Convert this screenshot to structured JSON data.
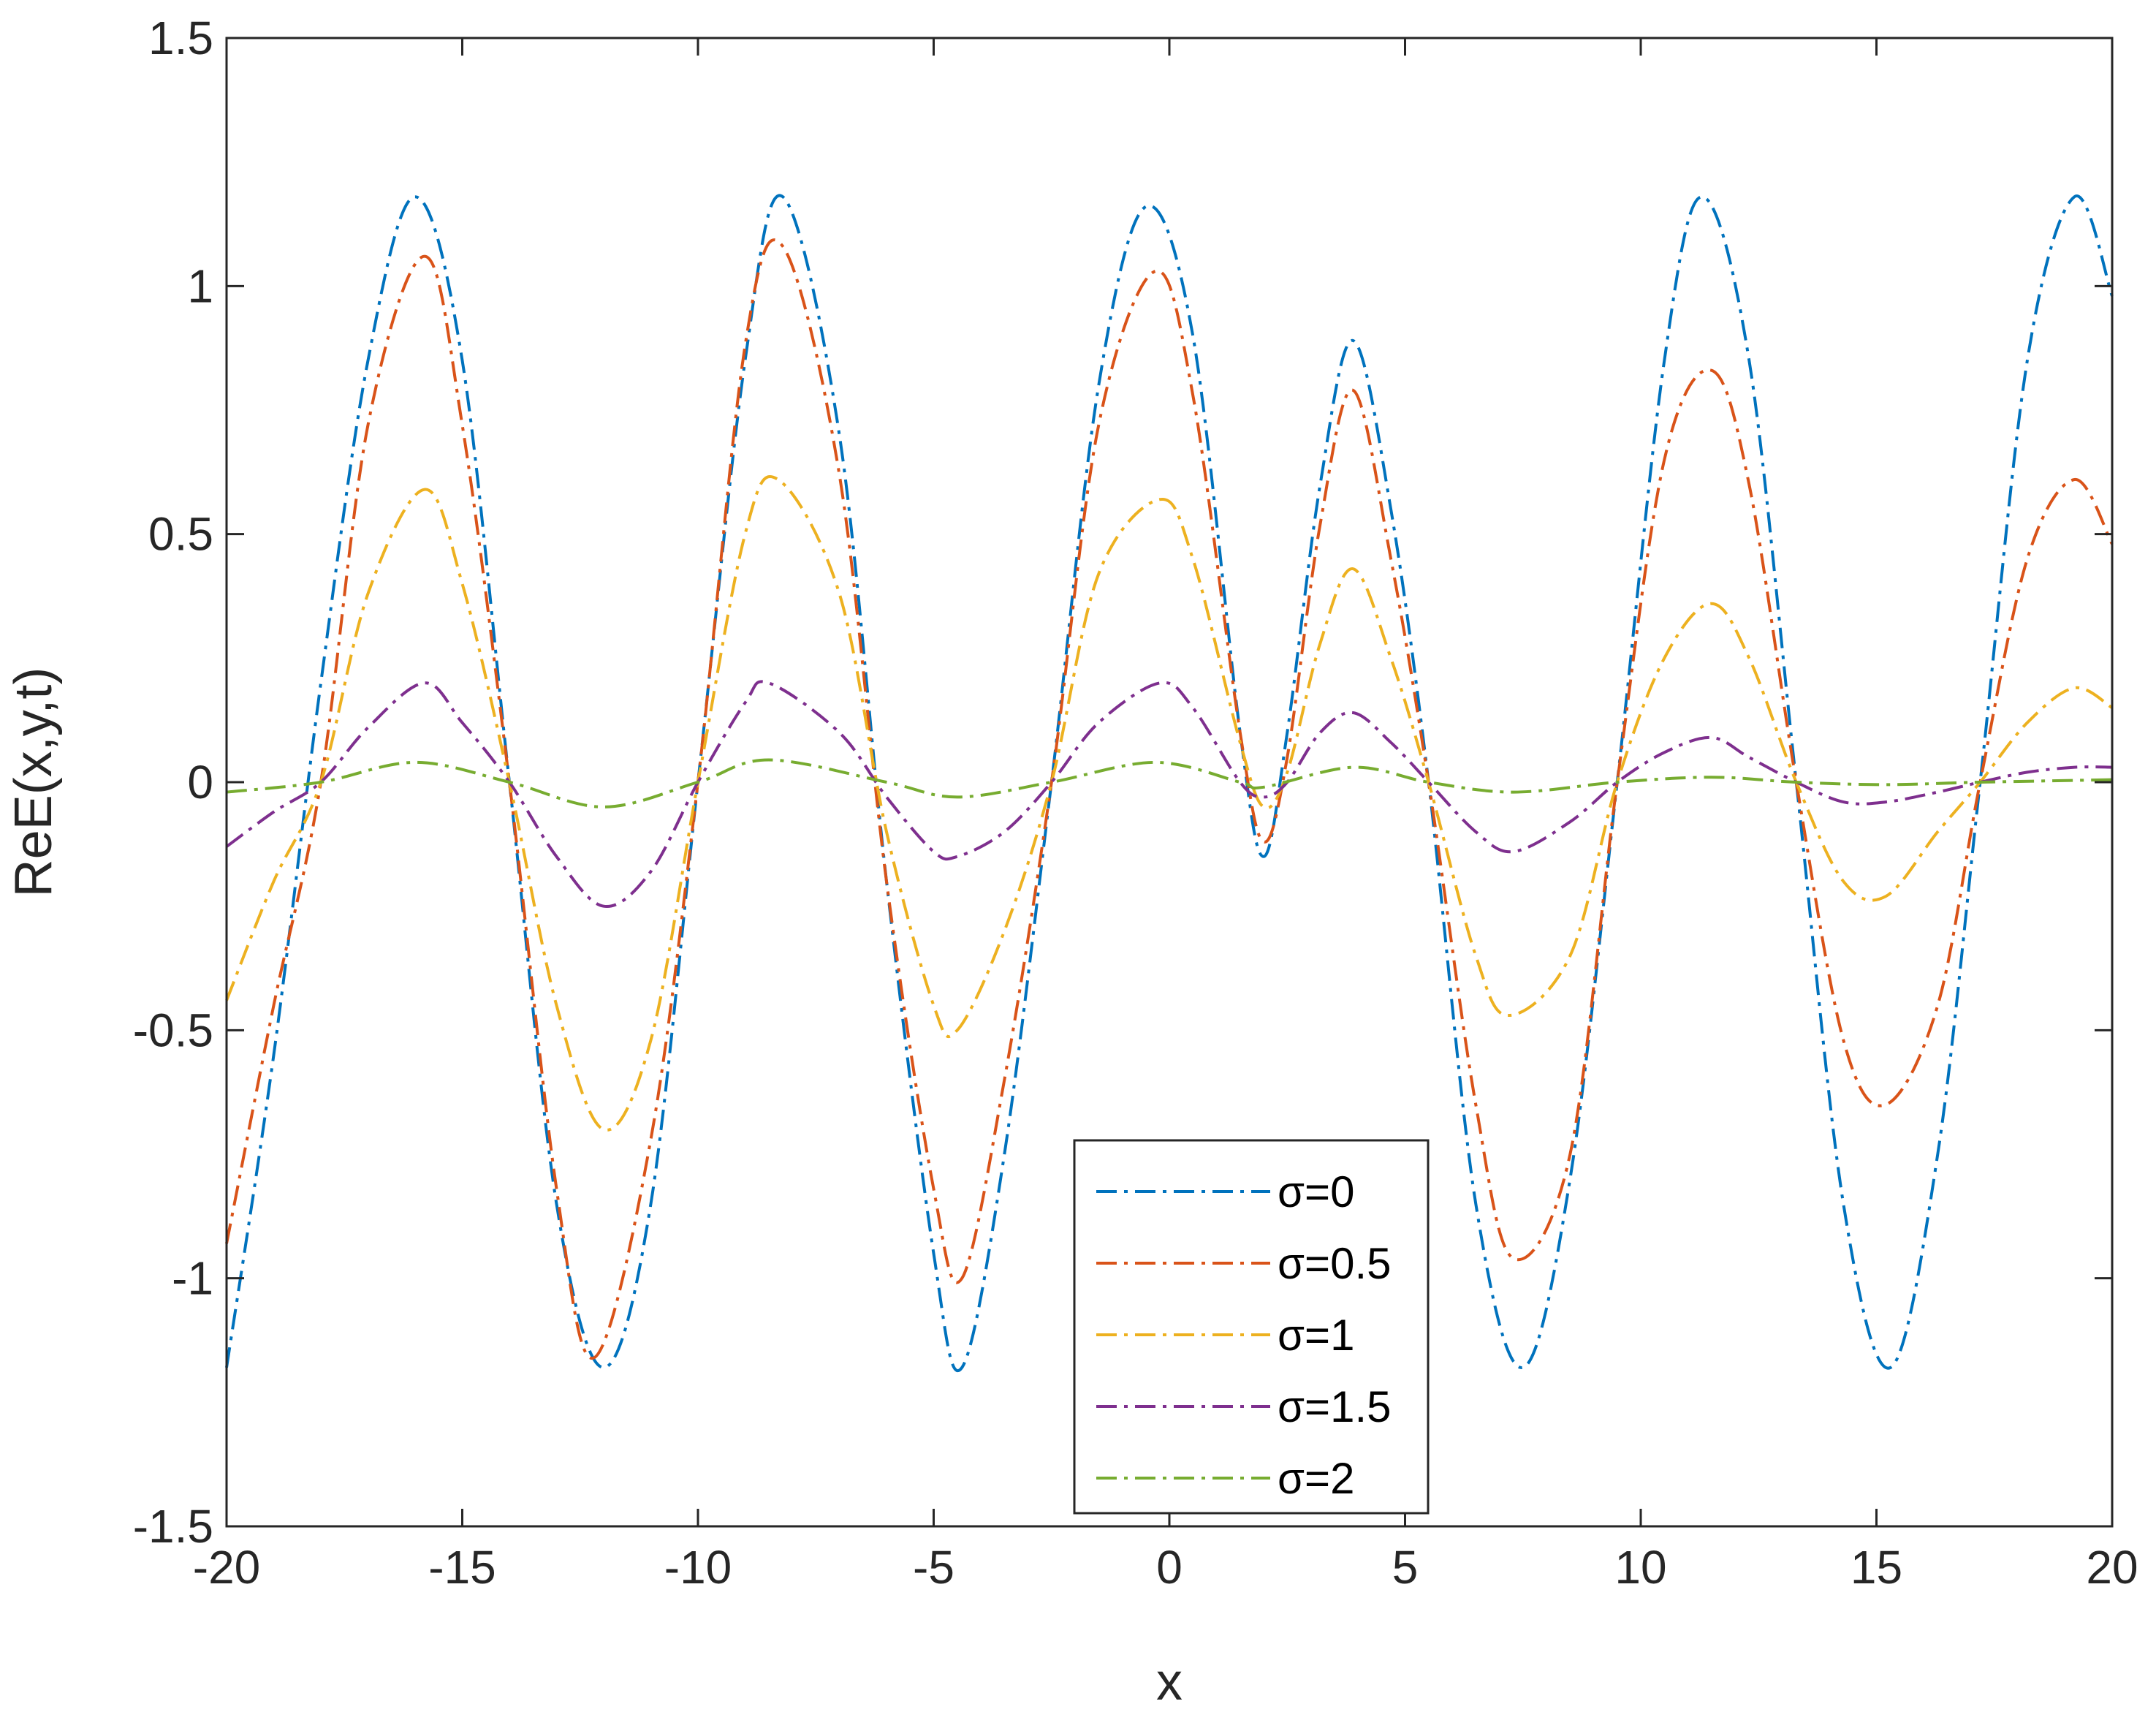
{
  "chart_data": {
    "type": "line",
    "title": "",
    "xlabel": "x",
    "ylabel": "ReE(x,y,t)",
    "xlim": [
      -20,
      20
    ],
    "ylim": [
      -1.5,
      1.5
    ],
    "xticks": [
      "-20",
      "-15",
      "-10",
      "-5",
      "0",
      "5",
      "10",
      "15",
      "20"
    ],
    "yticks": [
      "1.5",
      "1",
      "0.5",
      "0",
      "-0.5",
      "-1",
      "-1.5"
    ],
    "grid": false,
    "legend_position": "bottom-center",
    "line_style": "dash-dot",
    "series": [
      {
        "name": "σ=0",
        "color": "#0072BD",
        "points": [
          [
            -20,
            -1.18
          ],
          [
            -19,
            -0.55
          ],
          [
            -18,
            0.2
          ],
          [
            -17,
            0.85
          ],
          [
            -16,
            1.18
          ],
          [
            -15,
            0.85
          ],
          [
            -14,
            0.0
          ],
          [
            -13,
            -0.85
          ],
          [
            -12,
            -1.18
          ],
          [
            -11,
            -0.85
          ],
          [
            -10,
            0.0
          ],
          [
            -9,
            0.85
          ],
          [
            -8.2,
            1.18
          ],
          [
            -7,
            0.7
          ],
          [
            -6,
            -0.2
          ],
          [
            -5,
            -0.95
          ],
          [
            -4.4,
            -1.18
          ],
          [
            -3.5,
            -0.75
          ],
          [
            -2.5,
            0.0
          ],
          [
            -1.5,
            0.8
          ],
          [
            -0.5,
            1.16
          ],
          [
            0.5,
            0.9
          ],
          [
            1.5,
            0.1
          ],
          [
            2.0,
            -0.15
          ],
          [
            2.5,
            0.1
          ],
          [
            3.2,
            0.6
          ],
          [
            3.9,
            0.89
          ],
          [
            4.7,
            0.55
          ],
          [
            5.5,
            0.0
          ],
          [
            6.5,
            -0.85
          ],
          [
            7.5,
            -1.18
          ],
          [
            8.5,
            -0.8
          ],
          [
            9.5,
            0.0
          ],
          [
            10.5,
            0.85
          ],
          [
            11.3,
            1.18
          ],
          [
            12.3,
            0.85
          ],
          [
            13.3,
            0.0
          ],
          [
            14.3,
            -0.85
          ],
          [
            15.3,
            -1.18
          ],
          [
            16.3,
            -0.75
          ],
          [
            17.2,
            0.0
          ],
          [
            18.2,
            0.85
          ],
          [
            19.2,
            1.18
          ],
          [
            20,
            0.98
          ]
        ]
      },
      {
        "name": "σ=0.5",
        "color": "#D95319",
        "points": [
          [
            -20,
            -0.93
          ],
          [
            -19,
            -0.45
          ],
          [
            -18,
            0.0
          ],
          [
            -17,
            0.72
          ],
          [
            -15.8,
            1.06
          ],
          [
            -15,
            0.72
          ],
          [
            -14,
            0.0
          ],
          [
            -13,
            -0.82
          ],
          [
            -12.2,
            -1.16
          ],
          [
            -11,
            -0.72
          ],
          [
            -10,
            0.0
          ],
          [
            -9,
            0.88
          ],
          [
            -8.2,
            1.08
          ],
          [
            -7,
            0.62
          ],
          [
            -6,
            -0.2
          ],
          [
            -5,
            -0.82
          ],
          [
            -4.4,
            -1.0
          ],
          [
            -3.5,
            -0.6
          ],
          [
            -2.5,
            0.0
          ],
          [
            -1.5,
            0.72
          ],
          [
            -0.3,
            1.03
          ],
          [
            0.5,
            0.78
          ],
          [
            1.5,
            0.1
          ],
          [
            2.0,
            -0.12
          ],
          [
            2.5,
            0.05
          ],
          [
            3.2,
            0.52
          ],
          [
            3.9,
            0.79
          ],
          [
            4.7,
            0.45
          ],
          [
            5.5,
            0.0
          ],
          [
            6.5,
            -0.65
          ],
          [
            7.3,
            -0.96
          ],
          [
            8.5,
            -0.75
          ],
          [
            9.5,
            0.0
          ],
          [
            10.5,
            0.65
          ],
          [
            11.5,
            0.83
          ],
          [
            12.3,
            0.6
          ],
          [
            13.3,
            0.0
          ],
          [
            14.3,
            -0.52
          ],
          [
            15.2,
            -0.65
          ],
          [
            16.3,
            -0.45
          ],
          [
            17.2,
            0.0
          ],
          [
            18.2,
            0.45
          ],
          [
            19.2,
            0.61
          ],
          [
            20,
            0.48
          ]
        ]
      },
      {
        "name": "σ=1",
        "color": "#EDB120",
        "points": [
          [
            -20,
            -0.44
          ],
          [
            -19,
            -0.2
          ],
          [
            -18,
            0.0
          ],
          [
            -17,
            0.38
          ],
          [
            -15.8,
            0.59
          ],
          [
            -15,
            0.4
          ],
          [
            -14,
            0.0
          ],
          [
            -13,
            -0.45
          ],
          [
            -12,
            -0.7
          ],
          [
            -11,
            -0.52
          ],
          [
            -10,
            0.0
          ],
          [
            -9,
            0.5
          ],
          [
            -8.3,
            0.61
          ],
          [
            -7,
            0.38
          ],
          [
            -6,
            -0.1
          ],
          [
            -5,
            -0.45
          ],
          [
            -4.5,
            -0.5
          ],
          [
            -3.5,
            -0.3
          ],
          [
            -2.5,
            0.0
          ],
          [
            -1.5,
            0.42
          ],
          [
            -0.2,
            0.57
          ],
          [
            0.5,
            0.45
          ],
          [
            1.5,
            0.08
          ],
          [
            2.0,
            -0.05
          ],
          [
            2.5,
            0.02
          ],
          [
            3.2,
            0.28
          ],
          [
            3.9,
            0.43
          ],
          [
            4.7,
            0.25
          ],
          [
            5.5,
            0.0
          ],
          [
            6.5,
            -0.35
          ],
          [
            7.2,
            -0.47
          ],
          [
            8.5,
            -0.35
          ],
          [
            9.5,
            0.0
          ],
          [
            10.5,
            0.25
          ],
          [
            11.5,
            0.36
          ],
          [
            12.3,
            0.25
          ],
          [
            13.3,
            0.0
          ],
          [
            14.3,
            -0.2
          ],
          [
            15.2,
            -0.23
          ],
          [
            16.3,
            -0.1
          ],
          [
            17.2,
            0.0
          ],
          [
            18.2,
            0.12
          ],
          [
            19.2,
            0.19
          ],
          [
            20,
            0.15
          ]
        ]
      },
      {
        "name": "σ=1.5",
        "color": "#7E2F8E",
        "points": [
          [
            -20,
            -0.13
          ],
          [
            -19,
            -0.06
          ],
          [
            -18,
            0.0
          ],
          [
            -17,
            0.11
          ],
          [
            -15.8,
            0.2
          ],
          [
            -15,
            0.12
          ],
          [
            -14,
            0.0
          ],
          [
            -13,
            -0.15
          ],
          [
            -12,
            -0.25
          ],
          [
            -11,
            -0.18
          ],
          [
            -10,
            0.0
          ],
          [
            -9,
            0.16
          ],
          [
            -8.5,
            0.2
          ],
          [
            -7,
            0.1
          ],
          [
            -6,
            -0.03
          ],
          [
            -5,
            -0.14
          ],
          [
            -4.5,
            -0.15
          ],
          [
            -3.5,
            -0.1
          ],
          [
            -2.5,
            0.0
          ],
          [
            -1.5,
            0.12
          ],
          [
            -0.2,
            0.2
          ],
          [
            0.5,
            0.15
          ],
          [
            1.5,
            0.0
          ],
          [
            2.0,
            -0.03
          ],
          [
            2.5,
            0.0
          ],
          [
            3.2,
            0.1
          ],
          [
            3.9,
            0.14
          ],
          [
            4.7,
            0.08
          ],
          [
            5.5,
            0.0
          ],
          [
            6.5,
            -0.1
          ],
          [
            7.3,
            -0.14
          ],
          [
            8.5,
            -0.08
          ],
          [
            9.5,
            0.0
          ],
          [
            10.5,
            0.06
          ],
          [
            11.5,
            0.09
          ],
          [
            12.3,
            0.05
          ],
          [
            13.3,
            0.0
          ],
          [
            14.3,
            -0.04
          ],
          [
            15.2,
            -0.04
          ],
          [
            16.3,
            -0.02
          ],
          [
            17.2,
            0.0
          ],
          [
            18.2,
            0.02
          ],
          [
            19.2,
            0.03
          ],
          [
            20,
            0.03
          ]
        ]
      },
      {
        "name": "σ=2",
        "color": "#77AC30",
        "points": [
          [
            -20,
            -0.02
          ],
          [
            -18,
            0.0
          ],
          [
            -16,
            0.04
          ],
          [
            -14,
            0.0
          ],
          [
            -12,
            -0.05
          ],
          [
            -10,
            0.0
          ],
          [
            -8.5,
            0.045
          ],
          [
            -6,
            0.0
          ],
          [
            -4.5,
            -0.03
          ],
          [
            -2.5,
            0.0
          ],
          [
            -0.3,
            0.04
          ],
          [
            1.5,
            0.0
          ],
          [
            2.0,
            -0.01
          ],
          [
            3.9,
            0.03
          ],
          [
            5.5,
            0.0
          ],
          [
            7.3,
            -0.02
          ],
          [
            9.5,
            0.0
          ],
          [
            11.5,
            0.01
          ],
          [
            13.3,
            0.0
          ],
          [
            15.2,
            -0.005
          ],
          [
            17.2,
            0.0
          ],
          [
            20,
            0.005
          ]
        ]
      }
    ]
  }
}
